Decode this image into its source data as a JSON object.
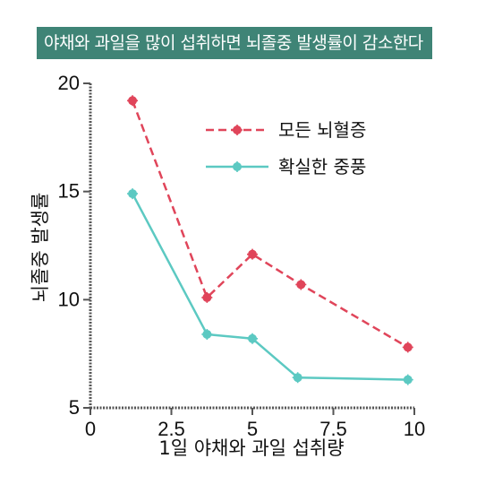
{
  "chart_data": {
    "type": "line",
    "title": "야채와 과일을 많이 섭취하면 뇌졸중 발생률이 감소한다",
    "xlabel": "1일 야채와 과일 섭취량",
    "ylabel": "뇌졸중 발생률",
    "xlim": [
      0,
      10
    ],
    "ylim": [
      5,
      20
    ],
    "xticks": [
      "0",
      "2.5",
      "5",
      "7.5",
      "10"
    ],
    "yticks": [
      "5",
      "10",
      "15",
      "20"
    ],
    "grid": false,
    "legend_position": "top-right",
    "series": [
      {
        "name": "모든 뇌혈증",
        "color": "#e0455a",
        "style": "dashed",
        "marker": "circle",
        "x": [
          1.3,
          3.6,
          5.0,
          6.5,
          9.8
        ],
        "y": [
          19.2,
          10.1,
          12.1,
          10.7,
          7.8
        ]
      },
      {
        "name": "확실한 중풍",
        "color": "#5cc9c2",
        "style": "solid",
        "marker": "circle",
        "x": [
          1.3,
          3.6,
          5.0,
          6.4,
          9.8
        ],
        "y": [
          14.9,
          8.4,
          8.2,
          6.4,
          6.3
        ]
      }
    ]
  }
}
